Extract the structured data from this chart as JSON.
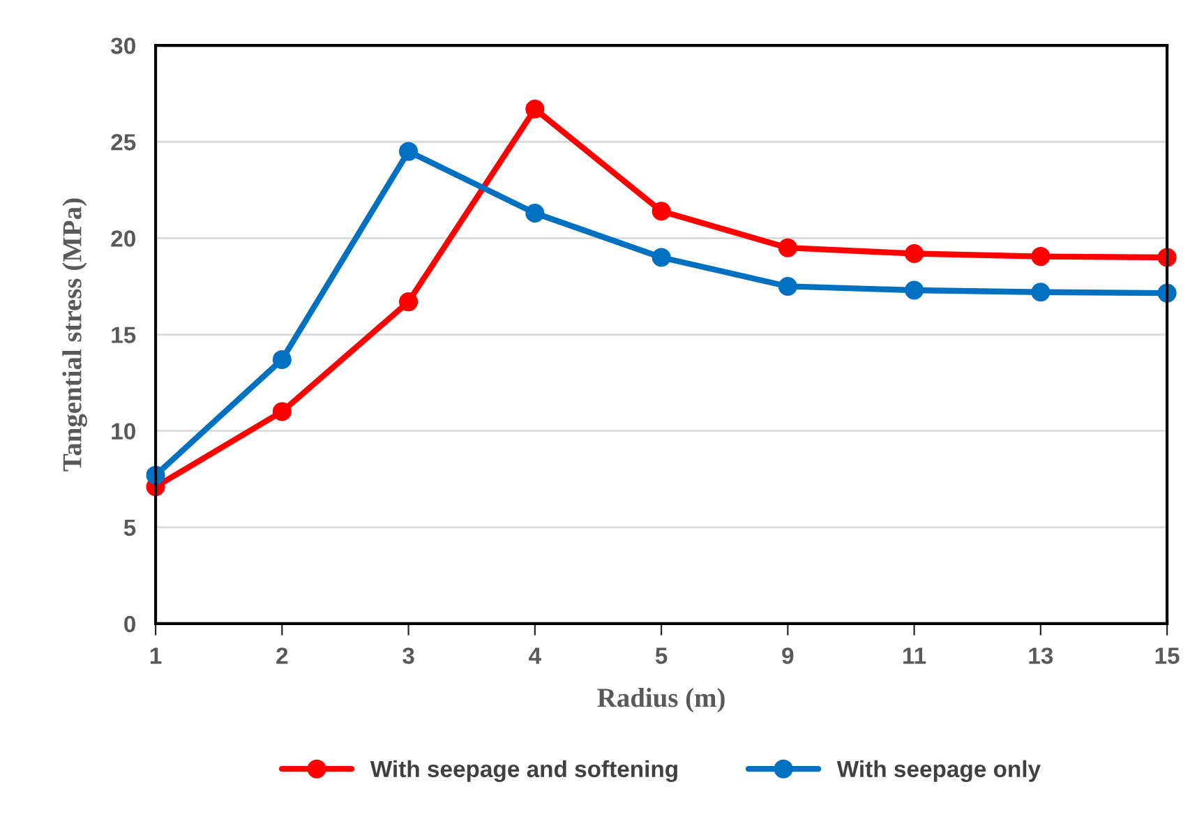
{
  "chart_data": {
    "type": "line",
    "xlabel": "Radius (m)",
    "ylabel": "Tangential stress (MPa)",
    "categories": [
      "1",
      "2",
      "3",
      "4",
      "5",
      "9",
      "11",
      "13",
      "15"
    ],
    "series": [
      {
        "name": "With seepage and softening",
        "color": "#ff0000",
        "values": [
          7.1,
          11.0,
          16.7,
          26.7,
          21.4,
          19.5,
          19.2,
          19.05,
          19.0
        ]
      },
      {
        "name": "With seepage only",
        "color": "#0070c0",
        "values": [
          7.7,
          13.7,
          24.5,
          21.3,
          19.0,
          17.5,
          17.3,
          17.2,
          17.15
        ]
      }
    ],
    "ylim": [
      0,
      30
    ],
    "yticks": [
      0,
      5,
      10,
      15,
      20,
      25,
      30
    ],
    "grid": "y",
    "legend": "bottom",
    "marker": "circle",
    "line_style": "solid"
  }
}
